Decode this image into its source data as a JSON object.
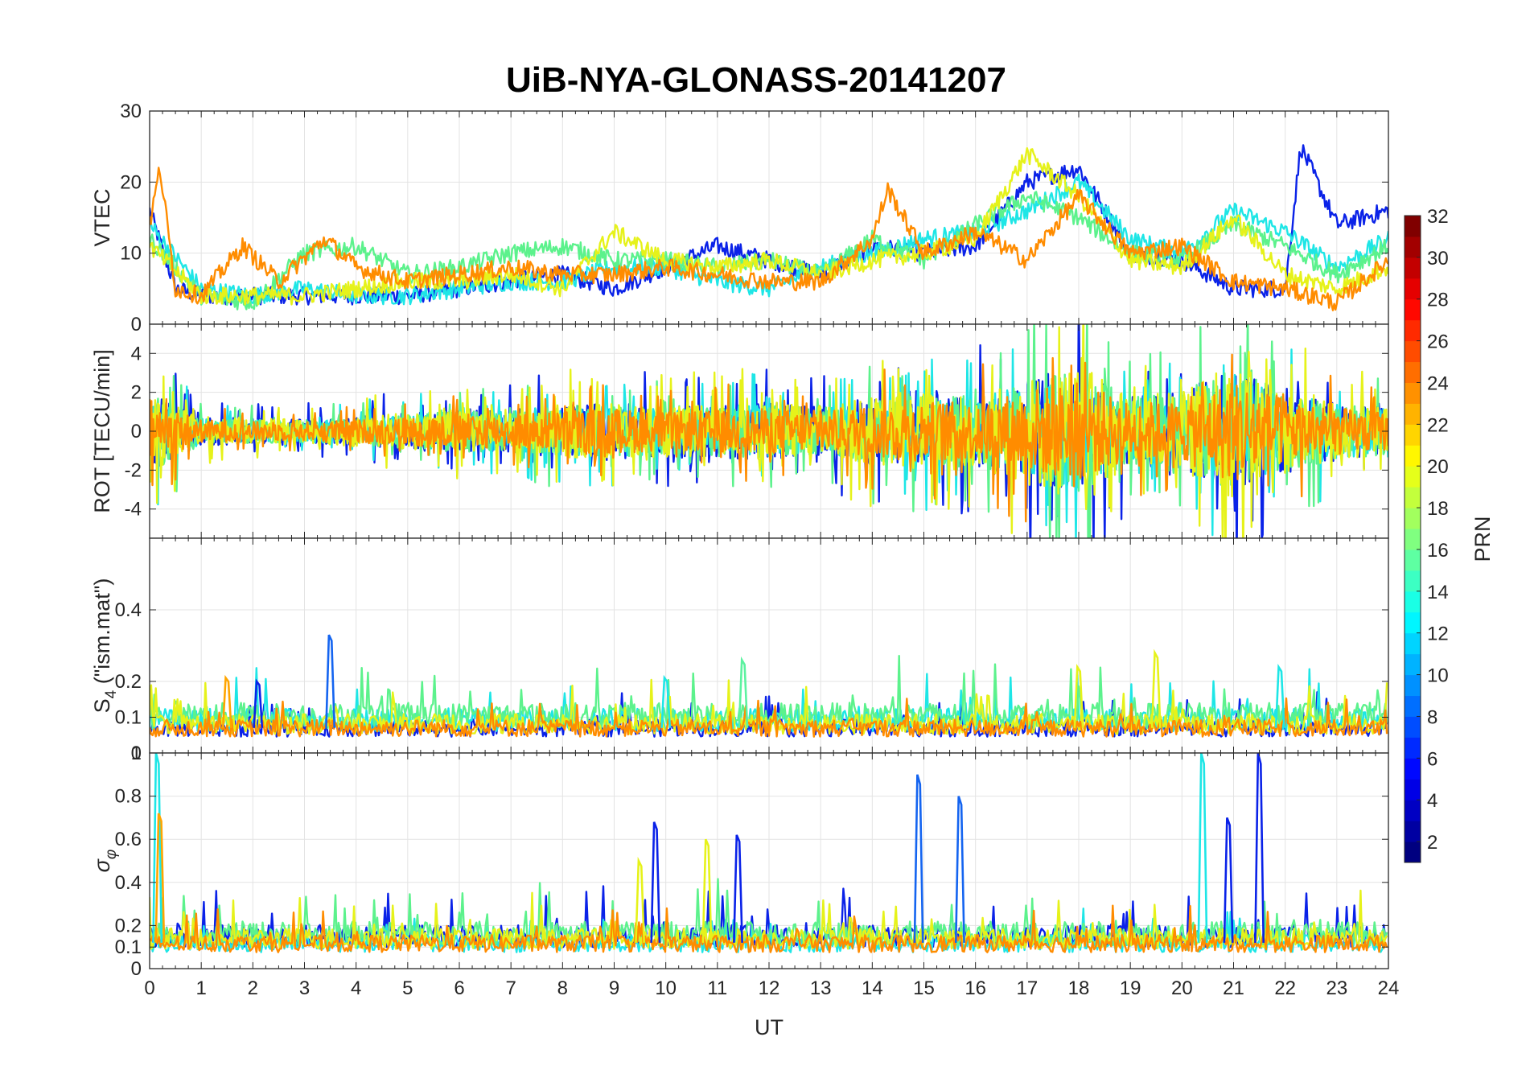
{
  "figure": {
    "title": "UiB-NYA-GLONASS-20141207",
    "xlabel": "UT"
  },
  "colorbar": {
    "label": "PRN",
    "min": 1,
    "max": 32,
    "ticks": [
      "2",
      "4",
      "6",
      "8",
      "10",
      "12",
      "14",
      "16",
      "18",
      "20",
      "22",
      "24",
      "26",
      "28",
      "30",
      "32"
    ],
    "colormap": "jet"
  },
  "chart_data": [
    {
      "type": "line",
      "panel": "vtec",
      "title": "UiB-NYA-GLONASS-20141207",
      "ylabel": "VTEC",
      "xlabel": "",
      "xlim": [
        0,
        24
      ],
      "ylim": [
        0,
        30
      ],
      "yticks": [
        "0",
        "10",
        "20",
        "30"
      ],
      "grid": true,
      "series": [
        {
          "prn": 7,
          "color": "#0a22e8",
          "x": [
            0,
            0.5,
            1,
            1.5,
            2,
            2.5,
            3,
            4,
            5,
            6,
            7,
            8,
            9,
            10,
            11,
            12,
            13,
            14,
            15,
            16,
            17,
            18,
            19,
            20,
            21,
            22,
            22.3,
            23,
            24
          ],
          "y": [
            16,
            5,
            4,
            4,
            4,
            4,
            4,
            4,
            4,
            5,
            6,
            7,
            5,
            8,
            11,
            9,
            7,
            11,
            10,
            11,
            20,
            22,
            10,
            9,
            5,
            5,
            25,
            14,
            16
          ]
        },
        {
          "prn": 13,
          "color": "#1ee6e6",
          "x": [
            0,
            1,
            2,
            3,
            4,
            5,
            6,
            7,
            8,
            9,
            10,
            11,
            12,
            13,
            14,
            15,
            16,
            17,
            18,
            19,
            20,
            21,
            22,
            23,
            24
          ],
          "y": [
            14,
            5,
            4,
            5,
            4,
            4,
            5,
            6,
            6,
            8,
            8,
            6,
            5,
            8,
            10,
            12,
            13,
            16,
            20,
            12,
            10,
            16,
            13,
            8,
            12
          ]
        },
        {
          "prn": 16,
          "color": "#5cf28c",
          "x": [
            0,
            1,
            2,
            3,
            4,
            5,
            6,
            7,
            8,
            9,
            10,
            11,
            12,
            13,
            14,
            15,
            16,
            17,
            18,
            19,
            20,
            21,
            22,
            23,
            24
          ],
          "y": [
            12,
            4,
            3,
            10,
            11,
            7,
            8,
            10,
            11,
            9,
            9,
            8,
            9,
            7,
            12,
            9,
            14,
            18,
            15,
            10,
            9,
            14,
            11,
            7,
            11
          ]
        },
        {
          "prn": 20,
          "color": "#e6f21a",
          "x": [
            0,
            1,
            2,
            3,
            4,
            5,
            6,
            7,
            8,
            9,
            10,
            11,
            12,
            13,
            14,
            15,
            16,
            17,
            18,
            19,
            20,
            21,
            22,
            23,
            24
          ],
          "y": [
            11,
            4,
            4,
            4,
            5,
            6,
            6,
            7,
            5,
            13,
            9,
            8,
            9,
            7,
            9,
            10,
            12,
            24,
            18,
            9,
            8,
            15,
            7,
            5,
            8
          ]
        },
        {
          "prn": 23,
          "color": "#ff8c00",
          "x": [
            0,
            0.2,
            0.5,
            1,
            1.8,
            2.5,
            3.4,
            4,
            5,
            6,
            7,
            8,
            9,
            10,
            11,
            12,
            13,
            14,
            14.3,
            15,
            16,
            17,
            18,
            19,
            20,
            21,
            22,
            23,
            24
          ],
          "y": [
            14,
            22,
            5,
            4,
            11,
            6,
            12,
            8,
            6,
            7,
            8,
            7,
            7,
            8,
            7,
            6,
            6,
            12,
            19,
            10,
            13,
            9,
            18,
            10,
            11,
            6,
            5,
            3,
            9
          ]
        }
      ]
    },
    {
      "type": "line",
      "panel": "rot",
      "ylabel": "ROT [TECU/min]",
      "xlabel": "",
      "xlim": [
        0,
        24
      ],
      "ylim": [
        -5.5,
        5.5
      ],
      "yticks": [
        "-4",
        "-2",
        "0",
        "2",
        "4"
      ],
      "grid": true,
      "noise_envelope": {
        "hours": [
          0,
          1,
          2,
          3,
          4,
          5,
          6,
          7,
          8,
          9,
          10,
          11,
          12,
          13,
          14,
          15,
          16,
          17,
          18,
          19,
          20,
          21,
          22,
          23,
          24
        ],
        "amplitude": [
          3.5,
          1.2,
          1,
          1,
          1.2,
          1.5,
          1.8,
          1.8,
          2.2,
          2.4,
          2,
          2.2,
          2.4,
          2,
          2.8,
          3.2,
          3,
          4.5,
          5.2,
          3,
          3.2,
          5.5,
          3.5,
          2.5,
          2
        ]
      },
      "series": [
        {
          "prn": 7,
          "color": "#0a22e8",
          "scale": 0.9
        },
        {
          "prn": 13,
          "color": "#1ee6e6",
          "scale": 0.8
        },
        {
          "prn": 16,
          "color": "#5cf28c",
          "scale": 0.85
        },
        {
          "prn": 20,
          "color": "#e6f21a",
          "scale": 0.9
        },
        {
          "prn": 23,
          "color": "#ff8c00",
          "scale": 0.7
        }
      ]
    },
    {
      "type": "line",
      "panel": "s4",
      "ylabel_main": "S",
      "ylabel_sub": "4",
      "ylabel_rest": " (\"ism.mat\")",
      "xlabel": "",
      "xlim": [
        0,
        24
      ],
      "ylim": [
        0,
        0.6
      ],
      "yticks": [
        "0",
        "0.1",
        "0.2",
        "0.4"
      ],
      "grid": true,
      "spikes": [
        {
          "x": 3.5,
          "y": 0.33,
          "color": "#1464f0"
        },
        {
          "x": 1.5,
          "y": 0.21,
          "color": "#ffa500"
        },
        {
          "x": 2.1,
          "y": 0.2,
          "color": "#0a22e8"
        },
        {
          "x": 11.5,
          "y": 0.26,
          "color": "#5cf2a0"
        },
        {
          "x": 10.0,
          "y": 0.21,
          "color": "#1ee6e6"
        },
        {
          "x": 19.5,
          "y": 0.28,
          "color": "#e6f21a"
        },
        {
          "x": 18.0,
          "y": 0.24,
          "color": "#e6f21a"
        },
        {
          "x": 21.9,
          "y": 0.24,
          "color": "#1ee6e6"
        }
      ],
      "series": [
        {
          "prn": 7,
          "color": "#0a22e8",
          "base": 0.06
        },
        {
          "prn": 13,
          "color": "#1ee6e6",
          "base": 0.08
        },
        {
          "prn": 16,
          "color": "#5cf28c",
          "base": 0.09
        },
        {
          "prn": 20,
          "color": "#e6f21a",
          "base": 0.07
        },
        {
          "prn": 23,
          "color": "#ff8c00",
          "base": 0.06
        }
      ]
    },
    {
      "type": "line",
      "panel": "sigma_phi",
      "ylabel_main": "σ",
      "ylabel_sub": "φ",
      "xlabel": "UT",
      "xlim": [
        0,
        24
      ],
      "ylim": [
        0,
        1
      ],
      "yticks": [
        "0",
        "0.1",
        "0.2",
        "0.4",
        "0.6",
        "0.8",
        "1"
      ],
      "xticks": [
        "0",
        "1",
        "2",
        "3",
        "4",
        "5",
        "6",
        "7",
        "8",
        "9",
        "10",
        "11",
        "12",
        "13",
        "14",
        "15",
        "16",
        "17",
        "18",
        "19",
        "20",
        "21",
        "22",
        "23",
        "24"
      ],
      "grid": true,
      "spikes": [
        {
          "x": 0.15,
          "y": 1.0,
          "color": "#1ee6e6"
        },
        {
          "x": 0.2,
          "y": 0.72,
          "color": "#ffa500"
        },
        {
          "x": 9.8,
          "y": 0.68,
          "color": "#0a22e8"
        },
        {
          "x": 10.8,
          "y": 0.6,
          "color": "#e6f21a"
        },
        {
          "x": 11.4,
          "y": 0.62,
          "color": "#0a22e8"
        },
        {
          "x": 14.9,
          "y": 0.9,
          "color": "#1464f0"
        },
        {
          "x": 15.7,
          "y": 0.8,
          "color": "#1464f0"
        },
        {
          "x": 20.4,
          "y": 1.0,
          "color": "#1ee6e6"
        },
        {
          "x": 21.5,
          "y": 1.0,
          "color": "#0a22e8"
        },
        {
          "x": 20.9,
          "y": 0.7,
          "color": "#0a22e8"
        },
        {
          "x": 9.5,
          "y": 0.5,
          "color": "#e6f21a"
        }
      ],
      "series": [
        {
          "prn": 7,
          "color": "#0a22e8",
          "base": 0.13
        },
        {
          "prn": 13,
          "color": "#1ee6e6",
          "base": 0.1
        },
        {
          "prn": 16,
          "color": "#5cf28c",
          "base": 0.14
        },
        {
          "prn": 20,
          "color": "#e6f21a",
          "base": 0.12
        },
        {
          "prn": 23,
          "color": "#ff8c00",
          "base": 0.1
        }
      ]
    }
  ]
}
